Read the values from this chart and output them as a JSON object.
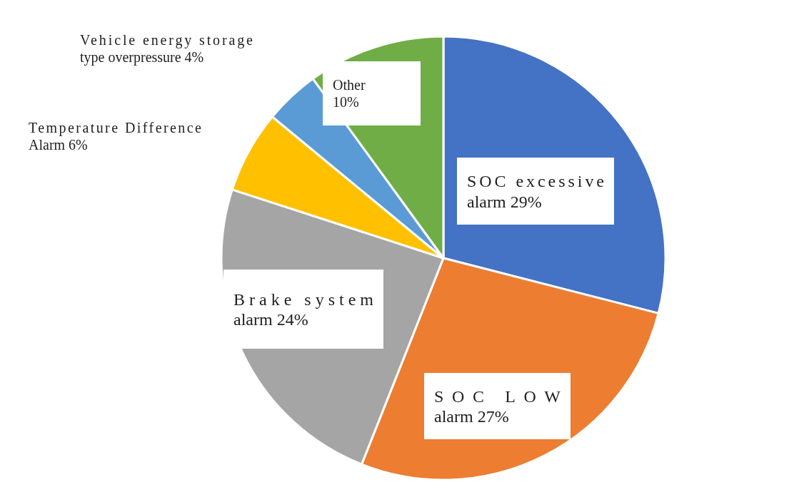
{
  "chart_data": {
    "type": "pie",
    "categories": [
      "SOC excessive alarm",
      "SOC LOW alarm",
      "Brake system alarm",
      "Temperature Difference Alarm",
      "Vehicle energy storage type overpressure",
      "Other"
    ],
    "values": [
      29,
      27,
      24,
      6,
      4,
      10
    ],
    "value_labels": [
      "29%",
      "27%",
      "24%",
      "6%",
      "4%",
      "10%"
    ],
    "colors": [
      "#4472c4",
      "#ed7d31",
      "#a5a5a5",
      "#ffc000",
      "#5b9bd5",
      "#70ad47"
    ]
  }
}
